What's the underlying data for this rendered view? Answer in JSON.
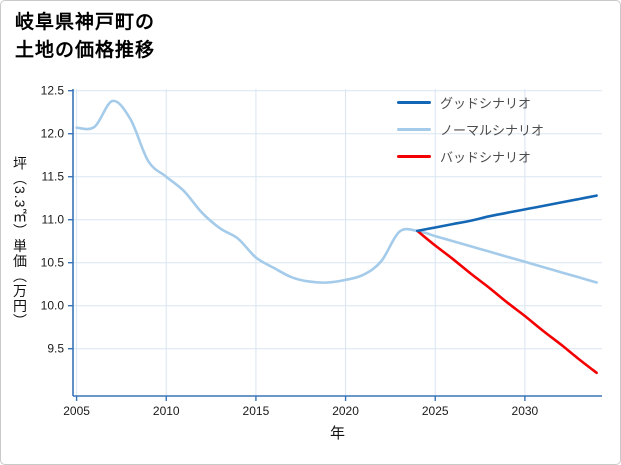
{
  "figure": {
    "title_lines": [
      "岐阜県神戸町の",
      "土地の価格推移"
    ]
  },
  "chart_data": {
    "type": "line",
    "title": "岐阜県神戸町の土地の価格推移",
    "xlabel": "年",
    "ylabel": "坪（3.3㎡）単価（万円）",
    "xlim": [
      2004.8,
      2034.3
    ],
    "ylim": [
      8.95,
      12.52
    ],
    "xticks": [
      2005,
      2010,
      2015,
      2020,
      2025,
      2030
    ],
    "yticks": [
      9.5,
      10.0,
      10.5,
      11.0,
      11.5,
      12.0,
      12.5
    ],
    "grid": true,
    "grid_color": "#d9e5f2",
    "axis_color": "#3a74b8",
    "legend_position": "upper-right",
    "series": [
      {
        "name": "グッドシナリオ",
        "color": "#1467b4",
        "x": [
          2024,
          2025,
          2026,
          2027,
          2028,
          2029,
          2030,
          2031,
          2032,
          2033,
          2034
        ],
        "values": [
          10.87,
          10.91,
          10.95,
          10.99,
          11.04,
          11.08,
          11.12,
          11.16,
          11.2,
          11.24,
          11.28
        ]
      },
      {
        "name": "ノーマルシナリオ",
        "color": "#a5cbea",
        "x": [
          2005,
          2006,
          2007,
          2008,
          2009,
          2010,
          2011,
          2012,
          2013,
          2014,
          2015,
          2016,
          2017,
          2018,
          2019,
          2020,
          2021,
          2022,
          2023,
          2024,
          2025,
          2026,
          2027,
          2028,
          2029,
          2030,
          2031,
          2032,
          2033,
          2034
        ],
        "values": [
          12.07,
          12.08,
          12.38,
          12.17,
          11.68,
          11.5,
          11.33,
          11.08,
          10.9,
          10.78,
          10.56,
          10.44,
          10.33,
          10.28,
          10.27,
          10.3,
          10.36,
          10.52,
          10.86,
          10.87,
          10.81,
          10.75,
          10.69,
          10.63,
          10.57,
          10.51,
          10.45,
          10.39,
          10.33,
          10.27
        ]
      },
      {
        "name": "バッドシナリオ",
        "color": "#f40000",
        "x": [
          2024,
          2025,
          2026,
          2027,
          2028,
          2029,
          2030,
          2031,
          2032,
          2033,
          2034
        ],
        "values": [
          10.87,
          10.7,
          10.54,
          10.37,
          10.21,
          10.04,
          9.88,
          9.71,
          9.55,
          9.38,
          9.22
        ]
      }
    ]
  }
}
